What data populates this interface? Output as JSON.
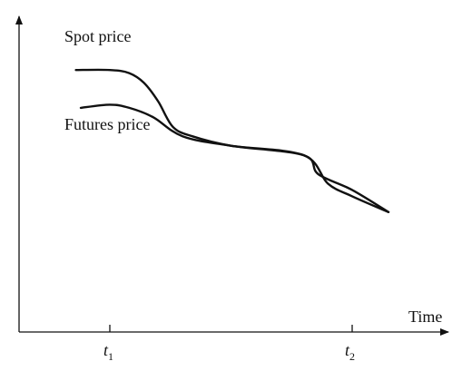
{
  "chart_data": {
    "type": "line",
    "title": "",
    "xlabel": "Time",
    "ylabel": "",
    "x_ticks": [
      {
        "label": "t",
        "sub": "1",
        "x": 0
      },
      {
        "label": "t",
        "sub": "2",
        "x": 1
      }
    ],
    "series": [
      {
        "name": "Spot price",
        "points": [
          [
            -0.14,
            0.83
          ],
          [
            0.0,
            0.83
          ],
          [
            0.08,
            0.82
          ],
          [
            0.14,
            0.79
          ],
          [
            0.2,
            0.73
          ],
          [
            0.26,
            0.65
          ],
          [
            0.34,
            0.62
          ],
          [
            0.5,
            0.59
          ],
          [
            0.8,
            0.56
          ],
          [
            0.86,
            0.5
          ],
          [
            1.0,
            0.45
          ],
          [
            1.15,
            0.38
          ]
        ]
      },
      {
        "name": "Futures price",
        "points": [
          [
            -0.12,
            0.71
          ],
          [
            0.0,
            0.72
          ],
          [
            0.08,
            0.71
          ],
          [
            0.18,
            0.68
          ],
          [
            0.3,
            0.62
          ],
          [
            0.5,
            0.59
          ],
          [
            0.8,
            0.56
          ],
          [
            0.9,
            0.47
          ],
          [
            1.0,
            0.43
          ],
          [
            1.15,
            0.38
          ]
        ]
      }
    ],
    "grid": false,
    "legend": "inline labels"
  }
}
